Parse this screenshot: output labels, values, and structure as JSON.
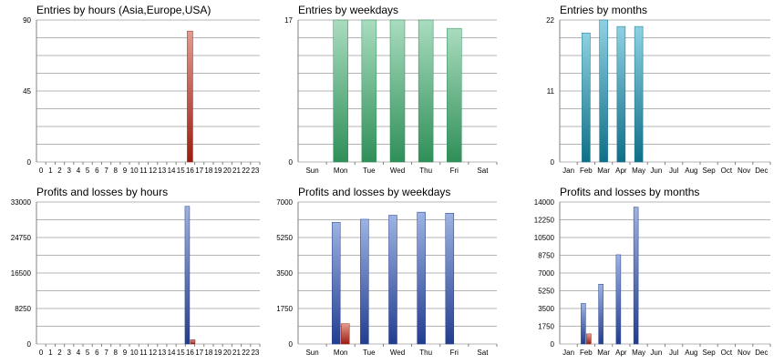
{
  "colors": {
    "grid": "#b4b4b4",
    "axis": "#808080",
    "tick_text": "#000000",
    "red_top": "#e39c92",
    "red_bottom": "#9a1e10",
    "green_top": "#a9dcbf",
    "green_bottom": "#2f8f58",
    "teal_top": "#8fd1e3",
    "teal_bottom": "#0f6f88",
    "blue_top": "#9db3e2",
    "blue_bottom": "#233d8f"
  },
  "charts": [
    {
      "title": "Entries by hours (Asia,Europe,USA)",
      "chart_data": {
        "type": "bar",
        "categories": [
          "0",
          "1",
          "2",
          "3",
          "4",
          "5",
          "6",
          "7",
          "8",
          "9",
          "10",
          "11",
          "12",
          "13",
          "14",
          "15",
          "16",
          "17",
          "18",
          "19",
          "20",
          "21",
          "22",
          "23"
        ],
        "series": [
          {
            "color": "red",
            "values": [
              0,
              0,
              0,
              0,
              0,
              0,
              0,
              0,
              0,
              0,
              0,
              0,
              0,
              0,
              0,
              0,
              83,
              0,
              0,
              0,
              0,
              0,
              0,
              0
            ]
          }
        ],
        "ylim": [
          0,
          90
        ],
        "yticks": [
          "0",
          "45",
          "90"
        ],
        "grid": true
      }
    },
    {
      "title": "Entries by weekdays",
      "chart_data": {
        "type": "bar",
        "categories": [
          "Sun",
          "Mon",
          "Tue",
          "Wed",
          "Thu",
          "Fri",
          "Sat"
        ],
        "series": [
          {
            "color": "green",
            "values": [
              0,
              17,
              17,
              17,
              17,
              16,
              0
            ]
          }
        ],
        "ylim": [
          0,
          17
        ],
        "yticks": [
          "0",
          "17"
        ],
        "grid": true
      }
    },
    {
      "title": "Entries by months",
      "chart_data": {
        "type": "bar",
        "categories": [
          "Jan",
          "Feb",
          "Mar",
          "Apr",
          "May",
          "Jun",
          "Jul",
          "Aug",
          "Sep",
          "Oct",
          "Nov",
          "Dec"
        ],
        "series": [
          {
            "color": "teal",
            "values": [
              0,
              20,
              22,
              21,
              21,
              0,
              0,
              0,
              0,
              0,
              0,
              0
            ]
          }
        ],
        "ylim": [
          0,
          22
        ],
        "yticks": [
          "0",
          "11",
          "22"
        ],
        "grid": true
      }
    },
    {
      "title": "Profits and losses by hours",
      "chart_data": {
        "type": "bar",
        "categories": [
          "0",
          "1",
          "2",
          "3",
          "4",
          "5",
          "6",
          "7",
          "8",
          "9",
          "10",
          "11",
          "12",
          "13",
          "14",
          "15",
          "16",
          "17",
          "18",
          "19",
          "20",
          "21",
          "22",
          "23"
        ],
        "series": [
          {
            "color": "blue",
            "values": [
              0,
              0,
              0,
              0,
              0,
              0,
              0,
              0,
              0,
              0,
              0,
              0,
              0,
              0,
              0,
              0,
              32000,
              0,
              0,
              0,
              0,
              0,
              0,
              0
            ]
          },
          {
            "color": "red",
            "values": [
              0,
              0,
              0,
              0,
              0,
              0,
              0,
              0,
              0,
              0,
              0,
              0,
              0,
              0,
              0,
              0,
              1000,
              0,
              0,
              0,
              0,
              0,
              0,
              0
            ]
          }
        ],
        "ylim": [
          0,
          33000
        ],
        "yticks": [
          "0",
          "8250",
          "16500",
          "24750",
          "33000"
        ],
        "grid": true
      }
    },
    {
      "title": "Profits and losses by weekdays",
      "chart_data": {
        "type": "bar",
        "categories": [
          "Sun",
          "Mon",
          "Tue",
          "Wed",
          "Thu",
          "Fri",
          "Sat"
        ],
        "series": [
          {
            "color": "blue",
            "values": [
              0,
              6000,
              6150,
              6350,
              6500,
              6450,
              0
            ]
          },
          {
            "color": "red",
            "values": [
              0,
              1000,
              0,
              0,
              0,
              0,
              0
            ]
          }
        ],
        "ylim": [
          0,
          7000
        ],
        "yticks": [
          "0",
          "1750",
          "3500",
          "5250",
          "7000"
        ],
        "grid": true
      }
    },
    {
      "title": "Profits and losses by months",
      "chart_data": {
        "type": "bar",
        "categories": [
          "Jan",
          "Feb",
          "Mar",
          "Apr",
          "May",
          "Jun",
          "Jul",
          "Aug",
          "Sep",
          "Oct",
          "Nov",
          "Dec"
        ],
        "series": [
          {
            "color": "blue",
            "values": [
              0,
              4000,
              5900,
              8800,
              13500,
              0,
              0,
              0,
              0,
              0,
              0,
              0
            ]
          },
          {
            "color": "red",
            "values": [
              0,
              1000,
              0,
              0,
              0,
              0,
              0,
              0,
              0,
              0,
              0,
              0
            ]
          }
        ],
        "ylim": [
          0,
          14000
        ],
        "yticks": [
          "0",
          "1750",
          "3500",
          "5250",
          "7000",
          "8750",
          "10500",
          "12250",
          "14000"
        ],
        "grid": true
      }
    }
  ]
}
